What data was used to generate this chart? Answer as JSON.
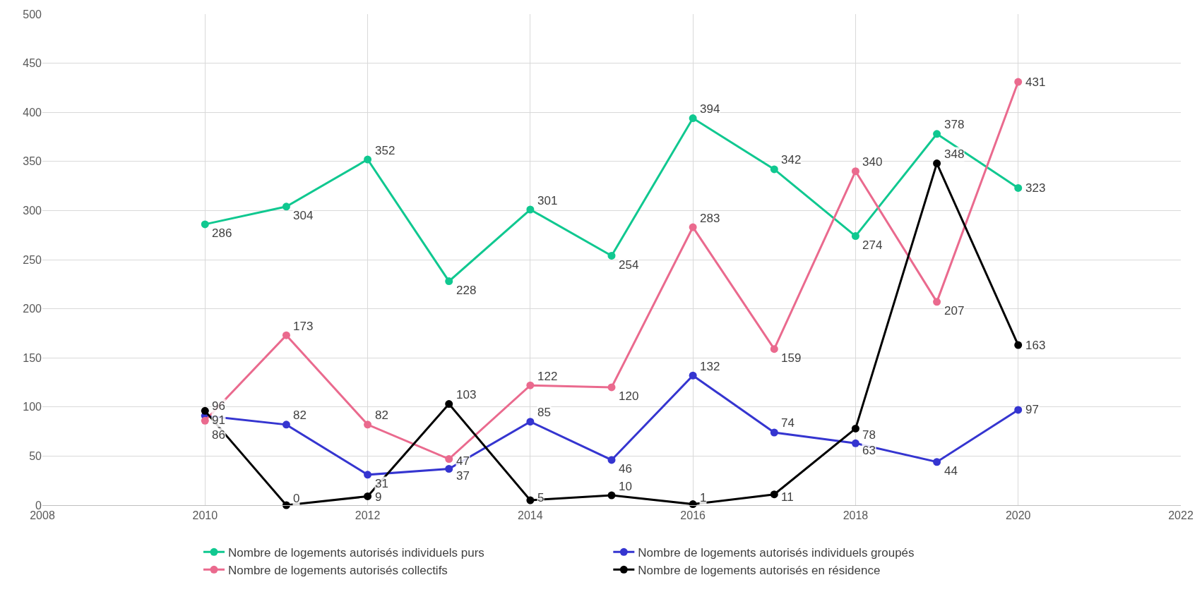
{
  "chart_data": {
    "type": "line",
    "x": [
      2010,
      2011,
      2012,
      2013,
      2014,
      2015,
      2016,
      2017,
      2018,
      2019,
      2020
    ],
    "series": [
      {
        "name": "Nombre de logements autorisés individuels purs",
        "color": "#10c890",
        "values": [
          286,
          304,
          352,
          228,
          301,
          254,
          394,
          342,
          274,
          378,
          323
        ]
      },
      {
        "name": "Nombre de logements autorisés individuels groupés",
        "color": "#3535d0",
        "values": [
          91,
          82,
          31,
          37,
          85,
          46,
          132,
          74,
          63,
          44,
          97
        ]
      },
      {
        "name": "Nombre de logements autorisés collectifs",
        "color": "#ea6a8e",
        "values": [
          86,
          173,
          82,
          47,
          122,
          120,
          283,
          159,
          340,
          207,
          431
        ]
      },
      {
        "name": "Nombre de logements autorisés en résidence",
        "color": "#000000",
        "values": [
          96,
          0,
          9,
          103,
          5,
          10,
          1,
          11,
          78,
          348,
          163
        ]
      }
    ],
    "xlim": [
      2008,
      2022
    ],
    "xticks": [
      2008,
      2010,
      2012,
      2014,
      2016,
      2018,
      2020,
      2022
    ],
    "ylim": [
      0,
      500
    ],
    "yticks": [
      0,
      50,
      100,
      150,
      200,
      250,
      300,
      350,
      400,
      450,
      500
    ],
    "grid": true,
    "legend": "bottom",
    "marker": "circle",
    "line_style": "solid",
    "data_labels": true
  }
}
